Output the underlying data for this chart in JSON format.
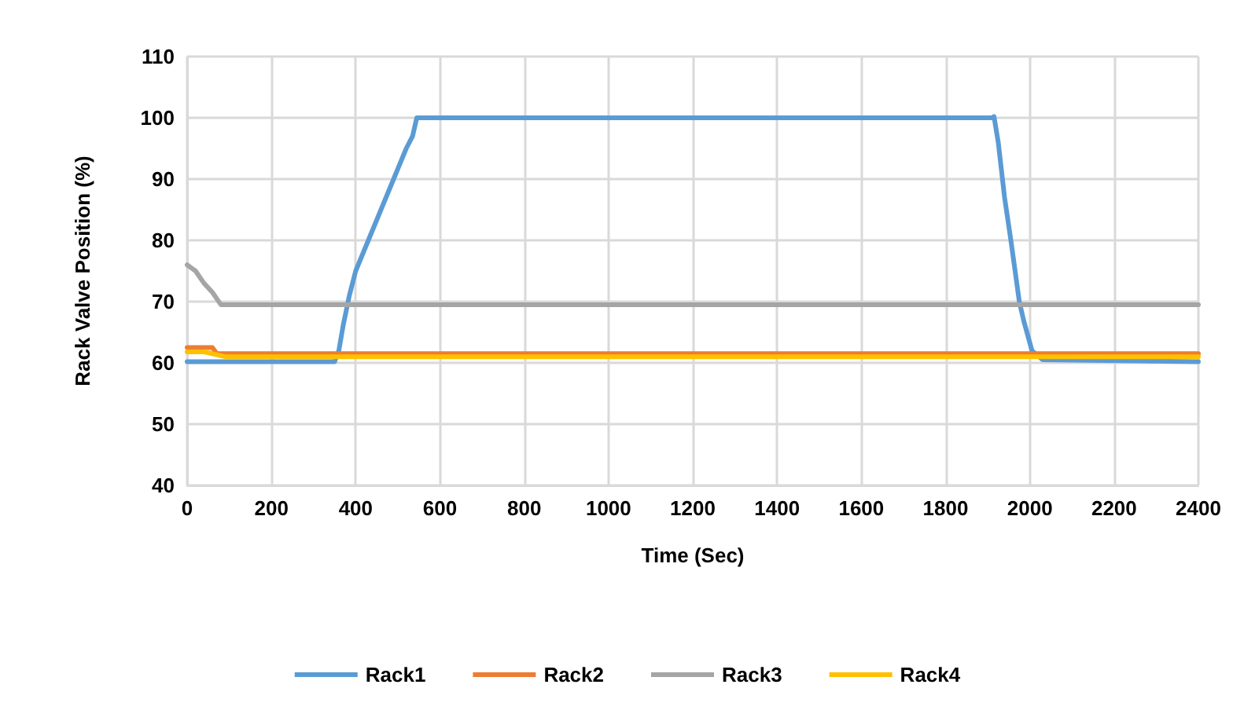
{
  "chart_data": {
    "type": "line",
    "xlabel": "Time (Sec)",
    "ylabel": "Rack Valve Position (%)",
    "xlim": [
      0,
      2400
    ],
    "xticks": [
      0,
      200,
      400,
      600,
      800,
      1000,
      1200,
      1400,
      1600,
      1800,
      2000,
      2200,
      2400
    ],
    "ylim": [
      40,
      110
    ],
    "yticks": [
      40,
      50,
      60,
      70,
      80,
      90,
      100,
      110
    ],
    "grid": true,
    "legend": "bottom",
    "marker": "none",
    "line_style": "solid",
    "series": [
      {
        "name": "Rack1",
        "color": "#5b9bd5",
        "x": [
          0,
          350,
          360,
          370,
          385,
          400,
          430,
          460,
          490,
          520,
          535,
          545,
          1910,
          1915,
          1925,
          1940,
          1955,
          1975,
          1985,
          2005,
          2030,
          2400
        ],
        "values": [
          60.2,
          60.2,
          62,
          66,
          71,
          75,
          80,
          85,
          90,
          95,
          97,
          100,
          100,
          100.2,
          96,
          87,
          80,
          70,
          67,
          62,
          60.5,
          60.2
        ]
      },
      {
        "name": "Rack2",
        "color": "#ed7d31",
        "x": [
          0,
          60,
          70,
          2400
        ],
        "values": [
          62.5,
          62.5,
          61.5,
          61.5
        ]
      },
      {
        "name": "Rack3",
        "color": "#a5a5a5",
        "x": [
          0,
          10,
          20,
          40,
          60,
          80,
          2400
        ],
        "values": [
          76,
          75.5,
          75,
          73,
          71.5,
          69.5,
          69.5
        ]
      },
      {
        "name": "Rack4",
        "color": "#ffc000",
        "x": [
          0,
          40,
          60,
          90,
          2400
        ],
        "values": [
          61.8,
          61.8,
          61.5,
          61,
          61
        ]
      }
    ]
  }
}
